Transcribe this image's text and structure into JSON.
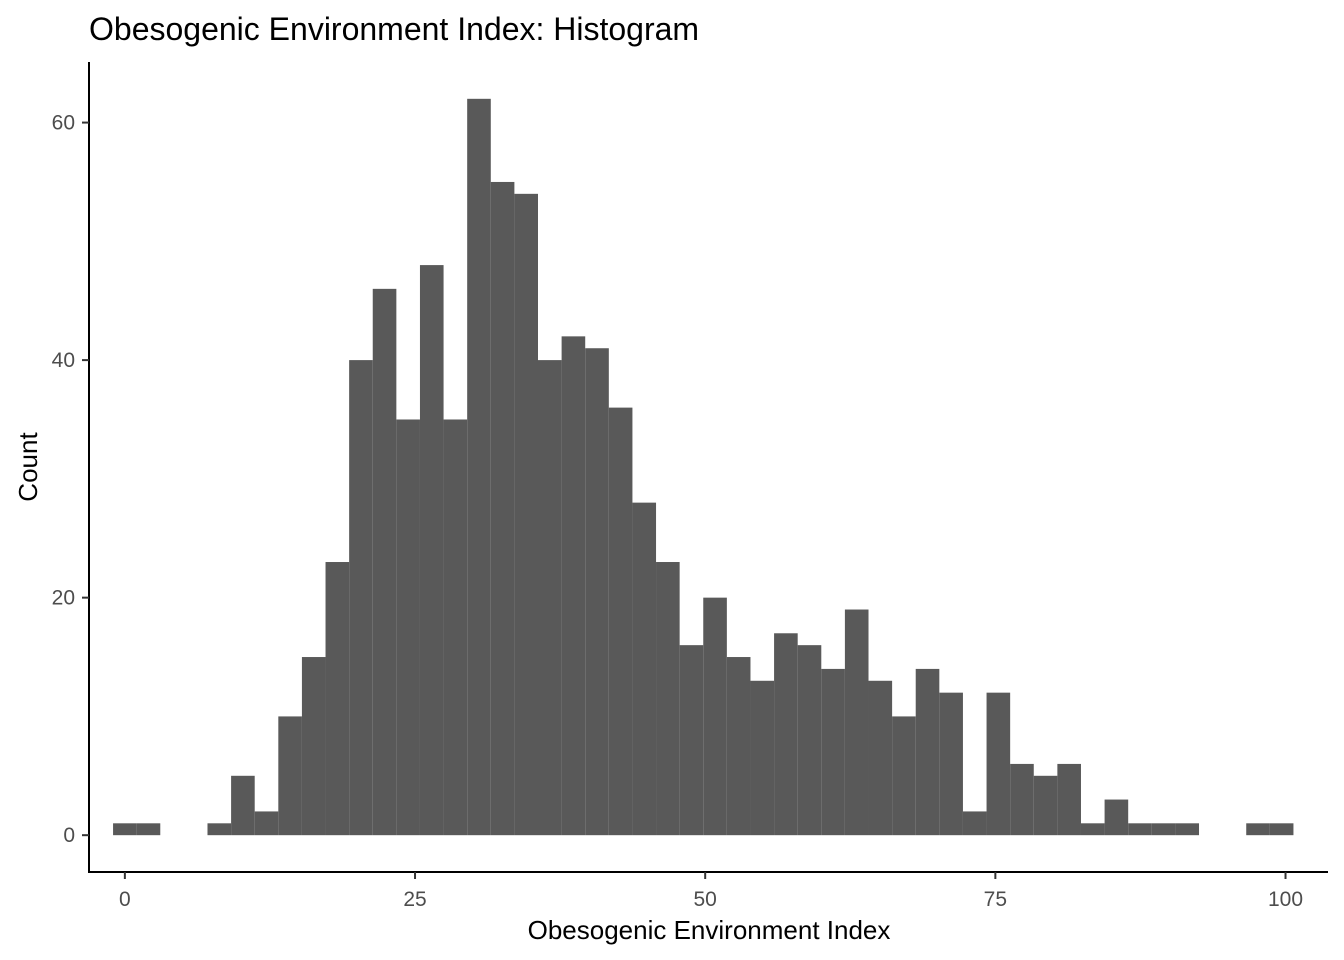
{
  "chart_data": {
    "type": "bar",
    "title": "Obesogenic Environment Index: Histogram",
    "xlabel": "Obesogenic Environment Index",
    "ylabel": "Count",
    "xlim": [
      -3.09,
      103.66
    ],
    "ylim": [
      -3.1,
      65.1
    ],
    "x_ticks": [
      0,
      25,
      50,
      75,
      100
    ],
    "x_tick_labels": [
      "0",
      "25",
      "50",
      "75",
      "100"
    ],
    "y_ticks": [
      0,
      20,
      40,
      60
    ],
    "y_tick_labels": [
      "0",
      "20",
      "40",
      "60"
    ],
    "bin_width": 2.034,
    "bin_start": -1.017,
    "counts": [
      1,
      1,
      0,
      0,
      1,
      5,
      2,
      10,
      15,
      23,
      40,
      46,
      35,
      48,
      35,
      62,
      55,
      54,
      40,
      42,
      41,
      36,
      28,
      23,
      16,
      20,
      15,
      13,
      17,
      16,
      14,
      19,
      13,
      10,
      14,
      12,
      2,
      12,
      6,
      5,
      6,
      1,
      3,
      1,
      1,
      1,
      0,
      0,
      1,
      1
    ],
    "bar_color": "#595959",
    "grid": false,
    "legend": "none"
  }
}
